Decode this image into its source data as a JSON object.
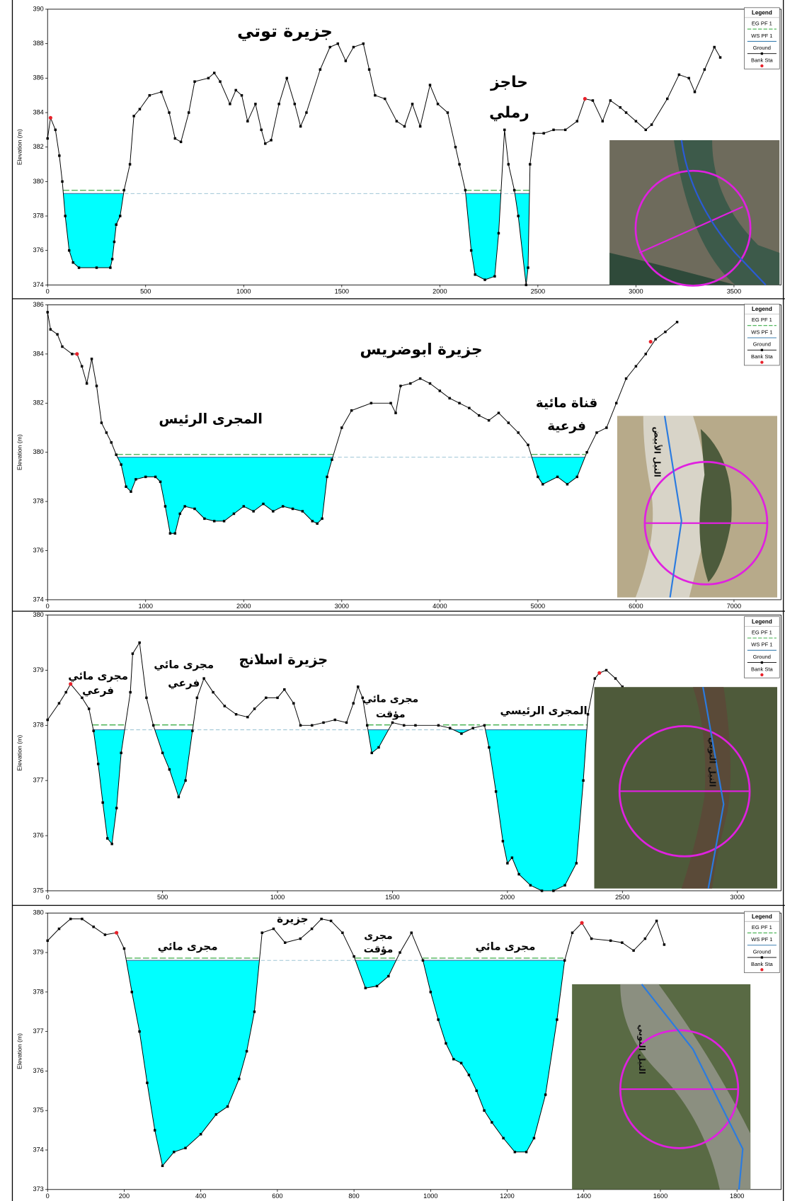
{
  "chart_data": [
    {
      "type": "line",
      "y_label": "Elevation (m)",
      "legend_title": "Legend",
      "water_fill": "#00ffff",
      "annotations": [
        "جزيرة توتي",
        "حاجز",
        "رملي"
      ],
      "inset_labels": [],
      "xlim": [
        0,
        3740
      ],
      "xticks": [
        0,
        500,
        1000,
        1500,
        2000,
        2500,
        3000,
        3500
      ],
      "ylim": [
        374,
        390
      ],
      "yticks": [
        374,
        376,
        378,
        380,
        382,
        384,
        386,
        388,
        390
      ],
      "series": [
        {
          "name": "EG PF 1",
          "color": "#3fae49",
          "values": [
            379.4
          ]
        },
        {
          "name": "WS PF 1",
          "color": "#3b7fb0",
          "values": [
            379.3
          ]
        },
        {
          "name": "Ground",
          "color": "#000000",
          "x": [
            0,
            15,
            40,
            60,
            75,
            90,
            110,
            130,
            160,
            250,
            320,
            330,
            340,
            350,
            370,
            390,
            420,
            440,
            470,
            520,
            580,
            620,
            650,
            680,
            720,
            750,
            820,
            850,
            880,
            930,
            960,
            990,
            1020,
            1060,
            1090,
            1110,
            1140,
            1180,
            1220,
            1260,
            1290,
            1320,
            1390,
            1440,
            1480,
            1520,
            1560,
            1610,
            1640,
            1670,
            1720,
            1780,
            1820,
            1860,
            1900,
            1950,
            1990,
            2040,
            2080,
            2100,
            2130,
            2160,
            2180,
            2230,
            2280,
            2300,
            2330,
            2350,
            2380,
            2400,
            2440,
            2450,
            2460,
            2480,
            2530,
            2580,
            2640,
            2700,
            2740,
            2780,
            2830,
            2870,
            2920,
            2950,
            3000,
            3050,
            3080,
            3160,
            3220,
            3270,
            3300,
            3350,
            3400,
            3430
          ],
          "values": [
            382.5,
            383.7,
            383,
            381.5,
            380,
            378,
            376,
            375.3,
            375,
            375,
            375,
            375.5,
            376.5,
            377.5,
            378,
            379.5,
            381,
            383.8,
            384.2,
            385,
            385.2,
            384,
            382.5,
            382.3,
            384,
            385.8,
            386,
            386.3,
            385.8,
            384.5,
            385.3,
            385,
            383.5,
            384.5,
            383,
            382.2,
            382.4,
            384.5,
            386,
            384.5,
            383.2,
            384,
            386.5,
            387.8,
            388,
            387,
            387.8,
            388,
            386.5,
            385,
            384.8,
            383.5,
            383.2,
            384.5,
            383.2,
            385.6,
            384.5,
            384,
            382,
            381,
            379.5,
            376,
            374.6,
            374.3,
            374.5,
            377,
            383,
            381,
            379.5,
            378,
            374,
            375,
            381,
            382.8,
            382.8,
            383,
            383,
            383.5,
            384.8,
            384.7,
            383.5,
            384.7,
            384.3,
            384,
            383.5,
            383,
            383.3,
            384.8,
            386.2,
            386,
            385.2,
            386.5,
            387.8,
            387.2
          ]
        },
        {
          "name": "Bank Sta",
          "color": "#e8212a",
          "x": [
            15,
            2740
          ],
          "values": [
            383.7,
            384.8
          ]
        }
      ]
    },
    {
      "type": "line",
      "y_label": "Elevation (m)",
      "legend_title": "Legend",
      "water_fill": "#00ffff",
      "annotations": [
        "جزيرة ابوضريس",
        "المجرى الرئيس",
        "قناة مائية",
        "فرعية"
      ],
      "inset_labels": [
        "النيل الأبيض"
      ],
      "xlim": [
        0,
        7480
      ],
      "xticks": [
        0,
        1000,
        2000,
        3000,
        4000,
        5000,
        6000,
        7000
      ],
      "ylim": [
        374,
        386
      ],
      "yticks": [
        374,
        376,
        378,
        380,
        382,
        384,
        386
      ],
      "series": [
        {
          "name": "EG PF 1",
          "color": "#3fae49",
          "values": [
            379.85
          ]
        },
        {
          "name": "WS PF 1",
          "color": "#3b7fb0",
          "values": [
            379.8
          ]
        },
        {
          "name": "Ground",
          "color": "#000000",
          "x": [
            0,
            30,
            100,
            150,
            250,
            300,
            350,
            400,
            450,
            500,
            550,
            600,
            650,
            700,
            750,
            800,
            850,
            900,
            1000,
            1100,
            1150,
            1200,
            1250,
            1300,
            1350,
            1400,
            1500,
            1600,
            1700,
            1800,
            1900,
            2000,
            2100,
            2200,
            2300,
            2400,
            2500,
            2600,
            2700,
            2750,
            2800,
            2850,
            2900,
            3000,
            3100,
            3300,
            3500,
            3550,
            3600,
            3700,
            3800,
            3900,
            4000,
            4100,
            4200,
            4300,
            4400,
            4500,
            4600,
            4700,
            4800,
            4900,
            5000,
            5050,
            5200,
            5300,
            5400,
            5500,
            5600,
            5700,
            5800,
            5900,
            6000,
            6100,
            6200,
            6300,
            6420
          ],
          "values": [
            385.7,
            385,
            384.8,
            384.3,
            384,
            384,
            383.5,
            382.8,
            383.8,
            382.7,
            381.2,
            380.8,
            380.4,
            379.9,
            379.5,
            378.6,
            378.4,
            378.9,
            379,
            379,
            378.8,
            377.8,
            376.7,
            376.7,
            377.5,
            377.8,
            377.7,
            377.3,
            377.2,
            377.2,
            377.5,
            377.8,
            377.6,
            377.9,
            377.6,
            377.8,
            377.7,
            377.6,
            377.2,
            377.1,
            377.3,
            379,
            379.7,
            381,
            381.7,
            382,
            382,
            381.6,
            382.7,
            382.8,
            383,
            382.8,
            382.5,
            382.2,
            382,
            381.8,
            381.5,
            381.3,
            381.6,
            381.2,
            380.8,
            380.3,
            379,
            378.7,
            379,
            378.7,
            379,
            380,
            380.8,
            381,
            382,
            383,
            383.5,
            384,
            384.6,
            384.9,
            385.3
          ]
        },
        {
          "name": "Bank Sta",
          "color": "#e8212a",
          "x": [
            300,
            6150
          ],
          "values": [
            384,
            384.5
          ]
        }
      ]
    },
    {
      "type": "line",
      "y_label": "Elevation (m)",
      "legend_title": "Legend",
      "water_fill": "#00ffff",
      "annotations": [
        "جزيرة اسلانج",
        "مجرى مائي",
        "فرعي",
        "مجرى مائي",
        "فرعي",
        "مجرى مائي",
        "مؤقت",
        "المجرى الرئيسي"
      ],
      "inset_labels": [
        "النيل النوبي"
      ],
      "xlim": [
        0,
        3190
      ],
      "xticks": [
        0,
        500,
        1000,
        1500,
        2000,
        2500,
        3000
      ],
      "ylim": [
        375,
        380
      ],
      "yticks": [
        375,
        376,
        377,
        378,
        379,
        380
      ],
      "series": [
        {
          "name": "EG PF 1",
          "color": "#3fae49",
          "values": [
            377.98
          ]
        },
        {
          "name": "WS PF 1",
          "color": "#3b7fb0",
          "values": [
            377.92
          ]
        },
        {
          "name": "Ground",
          "color": "#000000",
          "x": [
            0,
            50,
            80,
            100,
            150,
            180,
            200,
            220,
            240,
            260,
            280,
            300,
            320,
            360,
            370,
            400,
            430,
            460,
            500,
            530,
            570,
            600,
            630,
            650,
            680,
            720,
            770,
            820,
            870,
            900,
            950,
            1000,
            1030,
            1070,
            1100,
            1150,
            1200,
            1250,
            1300,
            1330,
            1350,
            1370,
            1390,
            1410,
            1440,
            1500,
            1550,
            1600,
            1700,
            1750,
            1800,
            1850,
            1900,
            1920,
            1950,
            1980,
            2000,
            2020,
            2050,
            2100,
            2150,
            2200,
            2250,
            2300,
            2330,
            2350,
            2380,
            2400,
            2430,
            2470,
            2500
          ],
          "values": [
            378.1,
            378.4,
            378.6,
            378.75,
            378.5,
            378.3,
            377.9,
            377.3,
            376.6,
            375.95,
            375.85,
            376.5,
            377.5,
            378.6,
            379.3,
            379.5,
            378.5,
            378,
            377.5,
            377.2,
            376.7,
            377,
            377.9,
            378.5,
            378.85,
            378.6,
            378.35,
            378.2,
            378.15,
            378.3,
            378.5,
            378.5,
            378.65,
            378.4,
            378,
            378,
            378.05,
            378.1,
            378.05,
            378.4,
            378.7,
            378.5,
            378,
            377.5,
            377.6,
            378.05,
            378,
            378,
            378,
            377.95,
            377.85,
            377.95,
            378,
            377.6,
            376.8,
            375.9,
            375.5,
            375.6,
            375.3,
            375.1,
            375,
            375,
            375.1,
            375.5,
            377,
            378.2,
            378.85,
            378.95,
            379,
            378.85,
            378.7
          ]
        },
        {
          "name": "Bank Sta",
          "color": "#e8212a",
          "x": [
            100,
            2400
          ],
          "values": [
            378.75,
            378.95
          ]
        }
      ]
    },
    {
      "type": "line",
      "y_label": "Elevation (m)",
      "legend_title": "Legend",
      "water_fill": "#00ffff",
      "annotations": [
        "مجرى مائي",
        "جزيرة",
        "مجرى",
        "مؤقت",
        "مجرى مائي"
      ],
      "inset_labels": [
        "النيل النوبي"
      ],
      "xlim": [
        0,
        1915
      ],
      "xticks": [
        0,
        200,
        400,
        600,
        800,
        1000,
        1200,
        1400,
        1600,
        1800
      ],
      "ylim": [
        373,
        380
      ],
      "yticks": [
        373,
        374,
        375,
        376,
        377,
        378,
        379,
        380
      ],
      "series": [
        {
          "name": "EG PF 1",
          "color": "#3fae49",
          "values": [
            378.82
          ]
        },
        {
          "name": "WS PF 1",
          "color": "#3b7fb0",
          "values": [
            378.8
          ]
        },
        {
          "name": "Ground",
          "color": "#000000",
          "x": [
            0,
            30,
            60,
            90,
            120,
            150,
            180,
            200,
            220,
            240,
            260,
            280,
            300,
            330,
            360,
            400,
            440,
            470,
            500,
            520,
            540,
            560,
            590,
            620,
            660,
            690,
            715,
            740,
            770,
            800,
            830,
            860,
            890,
            920,
            950,
            980,
            1000,
            1020,
            1040,
            1060,
            1080,
            1100,
            1120,
            1140,
            1160,
            1190,
            1220,
            1250,
            1270,
            1300,
            1330,
            1350,
            1370,
            1395,
            1420,
            1470,
            1500,
            1530,
            1560,
            1590,
            1610
          ],
          "values": [
            379.3,
            379.6,
            379.85,
            379.85,
            379.65,
            379.45,
            379.5,
            379.1,
            378,
            377,
            375.7,
            374.5,
            373.6,
            373.95,
            374.05,
            374.4,
            374.9,
            375.1,
            375.8,
            376.5,
            377.5,
            379.5,
            379.6,
            379.25,
            379.35,
            379.6,
            379.85,
            379.8,
            379.5,
            378.9,
            378.1,
            378.15,
            378.4,
            379,
            379.5,
            378.8,
            378,
            377.3,
            376.7,
            376.3,
            376.2,
            375.9,
            375.5,
            375,
            374.7,
            374.3,
            373.95,
            373.95,
            374.3,
            375.4,
            377.3,
            378.8,
            379.5,
            379.75,
            379.35,
            379.3,
            379.25,
            379.05,
            379.35,
            379.8,
            379.2
          ]
        },
        {
          "name": "Bank Sta",
          "color": "#e8212a",
          "x": [
            180,
            1395
          ],
          "values": [
            379.5,
            379.75
          ]
        }
      ]
    }
  ]
}
